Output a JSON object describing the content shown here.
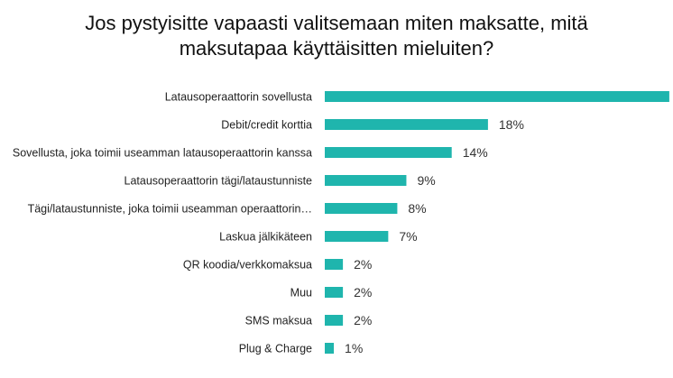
{
  "chart_data": {
    "type": "bar",
    "orientation": "horizontal",
    "title_lines": [
      "Jos pystyisitte vapaasti valitsemaan miten maksatte, mitä",
      "maksutapaa käyttäisitten mieluiten?"
    ],
    "categories": [
      "Latausoperaattorin sovellusta",
      "Debit/credit korttia",
      "Sovellusta, joka toimii useamman latausoperaattorin kanssa",
      "Latausoperaattorin tägi/lataustunniste",
      "Tägi/lataustunniste, joka toimii useamman operaattorin…",
      "Laskua jälkikäteen",
      "QR koodia/verkkomaksua",
      "Muu",
      "SMS maksua",
      "Plug & Charge"
    ],
    "values": [
      38,
      18,
      14,
      9,
      8,
      7,
      2,
      2,
      2,
      1
    ],
    "value_labels": [
      "",
      "18%",
      "14%",
      "9%",
      "8%",
      "7%",
      "2%",
      "2%",
      "2%",
      "1%"
    ],
    "bar_color": "#1fb5ad",
    "grid": false,
    "legend": "none"
  }
}
